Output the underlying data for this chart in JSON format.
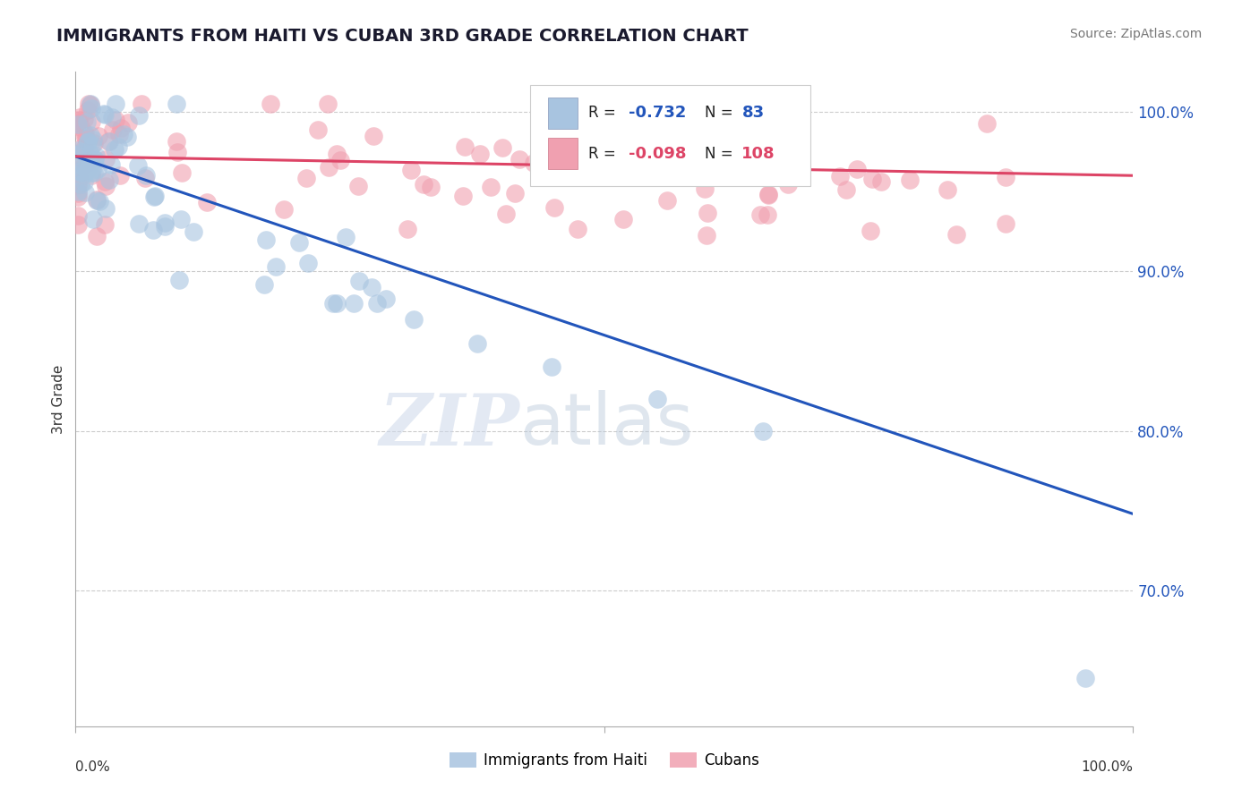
{
  "title": "IMMIGRANTS FROM HAITI VS CUBAN 3RD GRADE CORRELATION CHART",
  "source": "Source: ZipAtlas.com",
  "ylabel": "3rd Grade",
  "legend_haiti_r": "-0.732",
  "legend_haiti_n": "83",
  "legend_cuban_r": "-0.098",
  "legend_cuban_n": "108",
  "haiti_color": "#a8c4e0",
  "cuban_color": "#f0a0b0",
  "haiti_line_color": "#2255bb",
  "cuban_line_color": "#dd4466",
  "xmin": 0.0,
  "xmax": 1.0,
  "ymin": 0.615,
  "ymax": 1.025,
  "yticks": [
    1.0,
    0.9,
    0.8,
    0.7
  ],
  "ytick_labels": [
    "100.0%",
    "90.0%",
    "80.0%",
    "70.0%"
  ],
  "haiti_trend_x": [
    0.0,
    1.0
  ],
  "haiti_trend_y": [
    0.972,
    0.748
  ],
  "cuban_trend_x": [
    0.0,
    1.0
  ],
  "cuban_trend_y": [
    0.972,
    0.96
  ]
}
